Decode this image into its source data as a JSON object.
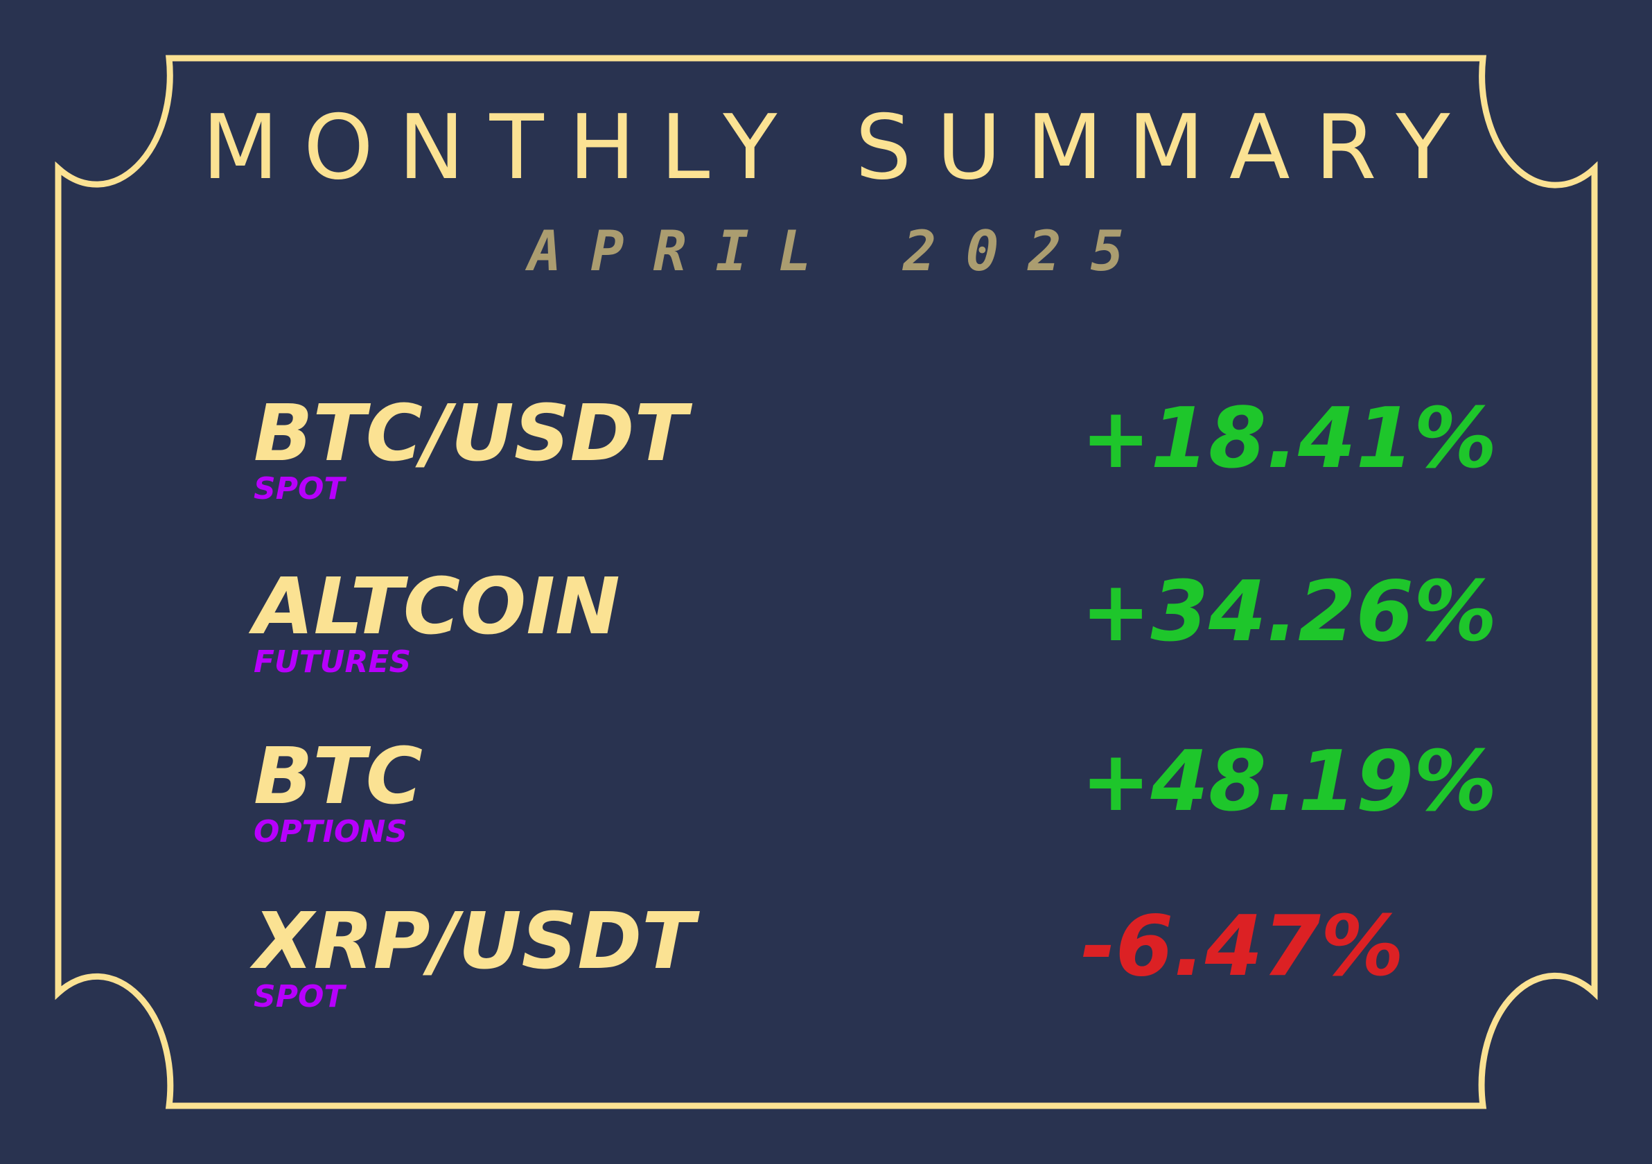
{
  "colors": {
    "background": "#293350",
    "frame": "#fbe293",
    "title": "#fbe293",
    "subtitle": "#ab9d70",
    "asset_name": "#fbe293",
    "asset_type": "#b700fc",
    "positive": "#1ec62b",
    "negative": "#dc2124"
  },
  "header": {
    "title": "MONTHLY SUMMARY",
    "subtitle": "APRIL 2025"
  },
  "assets": [
    {
      "name": "BTC/USDT",
      "type": "SPOT",
      "change": "+18.41%",
      "direction": "positive"
    },
    {
      "name": "ALTCOIN",
      "type": "FUTURES",
      "change": "+34.26%",
      "direction": "positive"
    },
    {
      "name": "BTC",
      "type": "OPTIONS",
      "change": "+48.19%",
      "direction": "positive"
    },
    {
      "name": "XRP/USDT",
      "type": "SPOT",
      "change": "-6.47%",
      "direction": "negative"
    }
  ]
}
